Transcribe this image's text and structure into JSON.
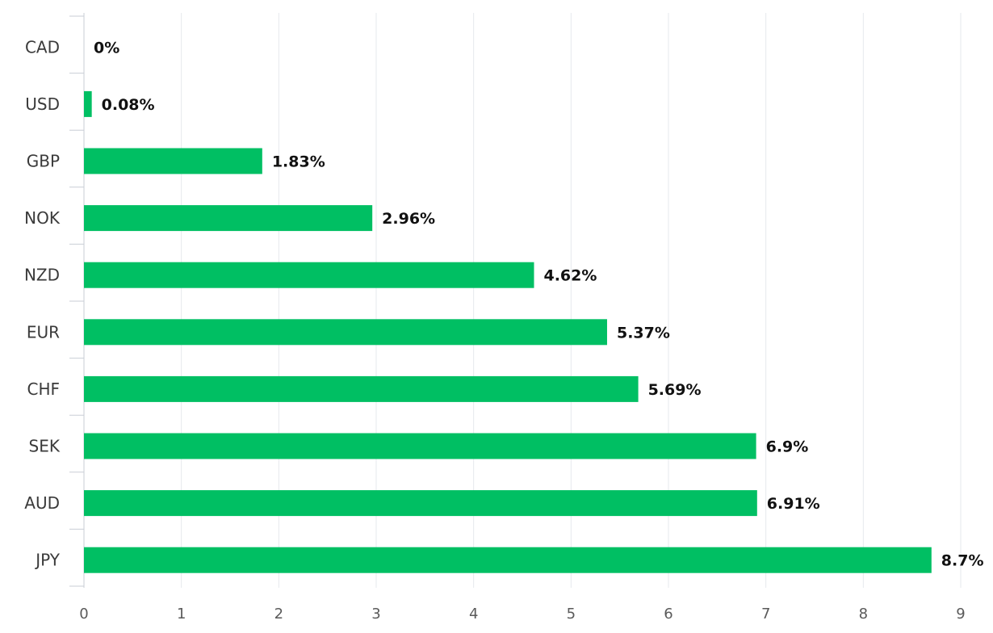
{
  "chart_data": {
    "type": "bar",
    "orientation": "horizontal",
    "categories": [
      "CAD",
      "USD",
      "GBP",
      "NOK",
      "NZD",
      "EUR",
      "CHF",
      "SEK",
      "AUD",
      "JPY"
    ],
    "values": [
      0,
      0.08,
      1.83,
      2.96,
      4.62,
      5.37,
      5.69,
      6.9,
      6.91,
      8.7
    ],
    "data_labels": [
      "0%",
      "0.08%",
      "1.83%",
      "2.96%",
      "4.62%",
      "5.37%",
      "5.69%",
      "6.9%",
      "6.91%",
      "8.7%"
    ],
    "x_ticks": [
      "0",
      "1",
      "2",
      "3",
      "4",
      "5",
      "6",
      "7",
      "8",
      "9"
    ],
    "xlim": [
      0,
      9
    ],
    "title": "",
    "xlabel": "",
    "ylabel": "",
    "grid": true,
    "legend": "none",
    "bar_color": "#00bf63"
  }
}
